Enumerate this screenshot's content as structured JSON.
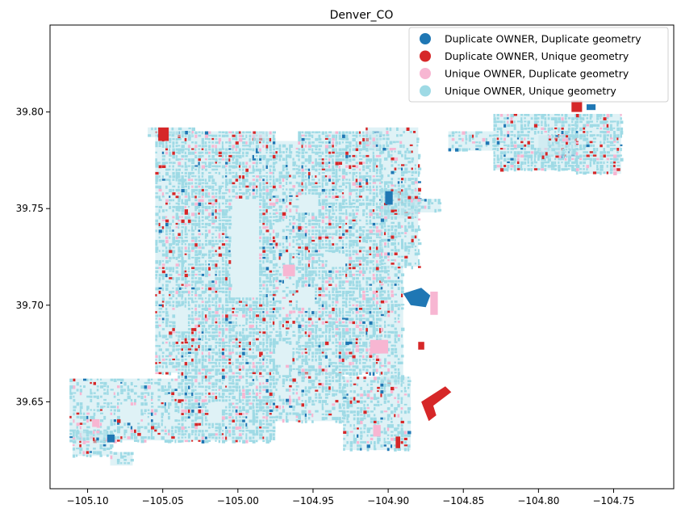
{
  "chart_data": {
    "type": "scatter",
    "title": "Denver_CO",
    "xlabel": "",
    "ylabel": "",
    "xlim": [
      -105.125,
      -104.71
    ],
    "ylim": [
      39.605,
      39.845
    ],
    "xticks": [
      -105.1,
      -105.05,
      -105.0,
      -104.95,
      -104.9,
      -104.85,
      -104.8,
      -104.75
    ],
    "xtick_labels": [
      "−105.10",
      "−105.05",
      "−105.00",
      "−104.95",
      "−104.90",
      "−104.85",
      "−104.80",
      "−104.75"
    ],
    "yticks": [
      39.65,
      39.7,
      39.75,
      39.8
    ],
    "ytick_labels": [
      "39.65",
      "39.70",
      "39.75",
      "39.80"
    ],
    "grid": false,
    "legend_position": "top-right",
    "series": [
      {
        "name": "Duplicate OWNER, Duplicate geometry",
        "color": "#1f77b4"
      },
      {
        "name": "Duplicate OWNER, Unique geometry",
        "color": "#d62728"
      },
      {
        "name": "Unique OWNER, Duplicate geometry",
        "color": "#f7b6d2"
      },
      {
        "name": "Unique OWNER, Unique geometry",
        "color": "#9edae5"
      }
    ]
  }
}
